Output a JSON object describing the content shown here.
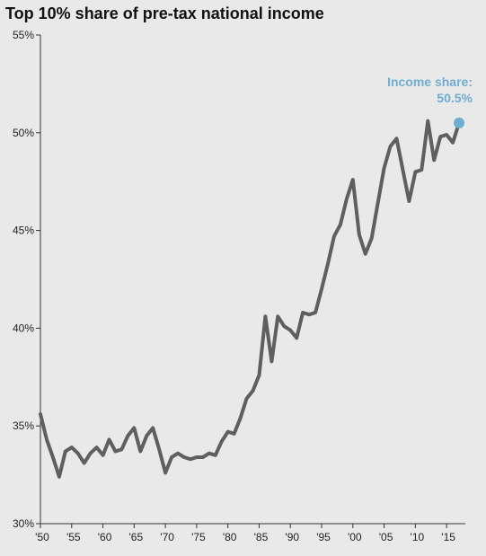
{
  "chart_data": {
    "type": "line",
    "title": "Top 10% share of pre-tax national income",
    "xlabel": "",
    "ylabel": "",
    "xlim": [
      1950,
      2018
    ],
    "ylim": [
      30,
      55
    ],
    "y_ticks": [
      30,
      35,
      40,
      45,
      50,
      55
    ],
    "y_tick_labels": [
      "30%",
      "35%",
      "40%",
      "45%",
      "50%",
      "55%"
    ],
    "x_ticks": [
      1950,
      1955,
      1960,
      1965,
      1970,
      1975,
      1980,
      1985,
      1990,
      1995,
      2000,
      2005,
      2010,
      2015
    ],
    "x_tick_labels": [
      "'50",
      "'55",
      "'60",
      "'65",
      "'70",
      "'75",
      "'80",
      "'85",
      "'90",
      "'95",
      "'00",
      "'05",
      "'10",
      "'15"
    ],
    "grid": false,
    "series": [
      {
        "color": "#5f5f5f",
        "x": [
          1950,
          1951,
          1952,
          1953,
          1954,
          1955,
          1956,
          1957,
          1958,
          1959,
          1960,
          1961,
          1962,
          1963,
          1964,
          1965,
          1966,
          1967,
          1968,
          1969,
          1970,
          1971,
          1972,
          1973,
          1974,
          1975,
          1976,
          1977,
          1978,
          1979,
          1980,
          1981,
          1982,
          1983,
          1984,
          1985,
          1986,
          1987,
          1988,
          1989,
          1990,
          1991,
          1992,
          1993,
          1994,
          1995,
          1996,
          1997,
          1998,
          1999,
          2000,
          2001,
          2002,
          2003,
          2004,
          2005,
          2006,
          2007,
          2008,
          2009,
          2010,
          2011,
          2012,
          2013,
          2014,
          2015,
          2016,
          2017
        ],
        "values": [
          35.6,
          34.3,
          33.4,
          32.4,
          33.7,
          33.9,
          33.6,
          33.1,
          33.6,
          33.9,
          33.5,
          34.3,
          33.7,
          33.8,
          34.5,
          34.9,
          33.7,
          34.5,
          34.9,
          33.8,
          32.6,
          33.4,
          33.6,
          33.4,
          33.3,
          33.4,
          33.4,
          33.6,
          33.5,
          34.2,
          34.7,
          34.6,
          35.4,
          36.4,
          36.8,
          37.6,
          40.6,
          38.3,
          40.6,
          40.1,
          39.9,
          39.5,
          40.8,
          40.7,
          40.8,
          42.0,
          43.3,
          44.7,
          45.3,
          46.6,
          47.6,
          44.8,
          43.8,
          44.6,
          46.4,
          48.2,
          49.3,
          49.7,
          48.1,
          46.5,
          48.0,
          48.1,
          50.6,
          48.6,
          49.8,
          49.9,
          49.5,
          50.5
        ]
      }
    ],
    "annotation": {
      "label": "Income share:",
      "value_label": "50.5%",
      "x": 2017,
      "y": 50.5,
      "color": "#6fadd0"
    }
  }
}
